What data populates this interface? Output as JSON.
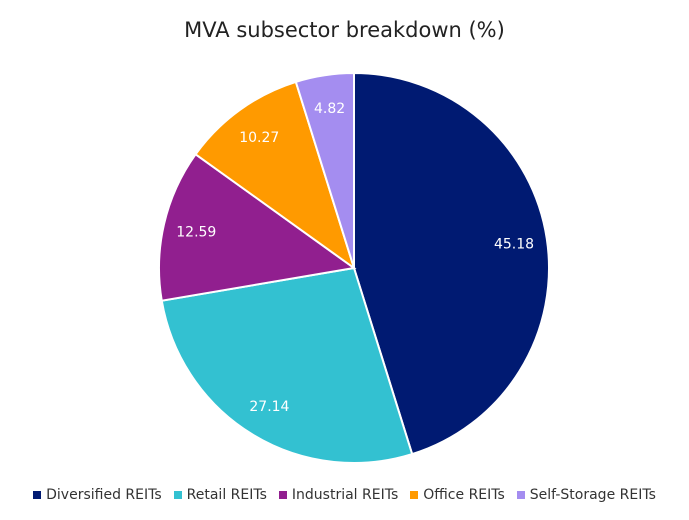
{
  "chart_data": {
    "type": "pie",
    "title": "MVA subsector breakdown (%)",
    "start_angle": "top",
    "direction": "clockwise",
    "legend_position": "bottom",
    "slices": [
      {
        "name": "Diversified REITs",
        "value": 45.18,
        "label": "45.18",
        "color": "#001a72"
      },
      {
        "name": "Retail REITs",
        "value": 27.14,
        "label": "27.14",
        "color": "#33c1d1"
      },
      {
        "name": "Industrial REITs",
        "value": 12.59,
        "label": "12.59",
        "color": "#911f8f"
      },
      {
        "name": "Office REITs",
        "value": 10.27,
        "label": "10.27",
        "color": "#ff9a00"
      },
      {
        "name": "Self-Storage REITs",
        "value": 4.82,
        "label": "4.82",
        "color": "#a48df0"
      }
    ]
  }
}
